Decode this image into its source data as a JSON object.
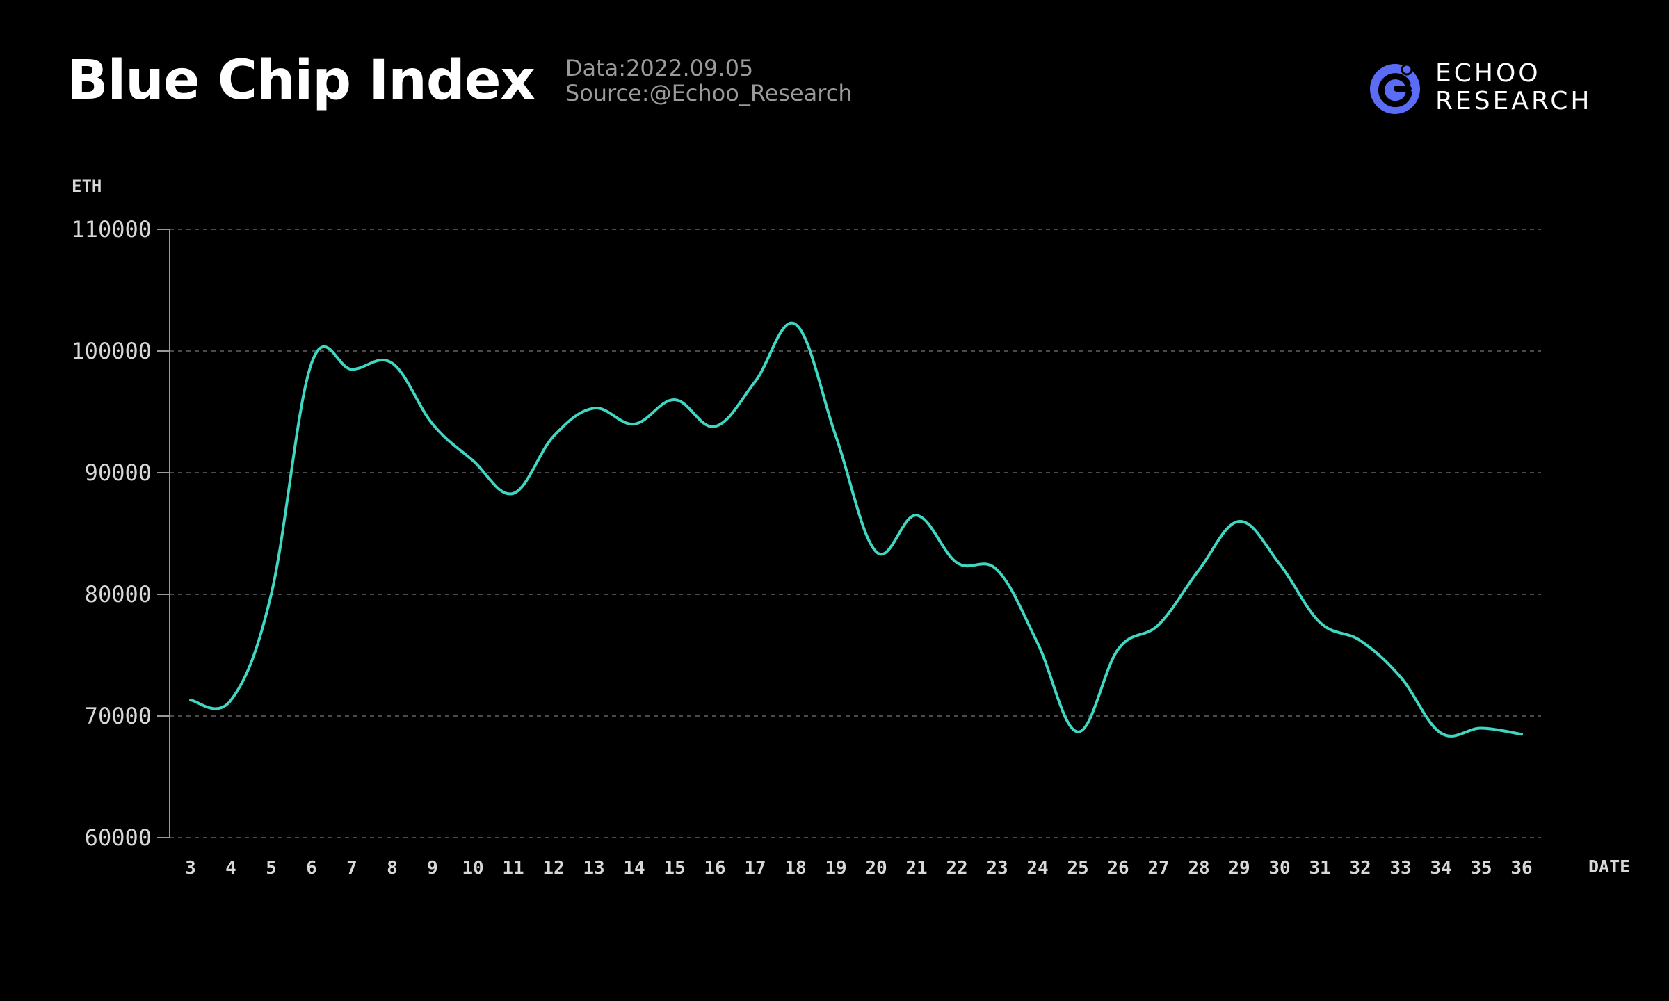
{
  "header": {
    "title": "Blue Chip Index",
    "date_line": "Data:2022.09.05",
    "source_line": "Source:@Echoo_Research"
  },
  "logo": {
    "line1": "ECHOO",
    "line2": "RESEARCH",
    "icon": "echoo-logo-icon",
    "color": "#5b6cf6"
  },
  "colors": {
    "background": "#000000",
    "line": "#3fd6c2",
    "grid": "#4a4a4a",
    "axis": "#9a9a9a",
    "tick_text": "#d8d8d8"
  },
  "chart_data": {
    "type": "line",
    "title": "Blue Chip Index",
    "ylabel": "ETH",
    "xlabel": "DATE",
    "ylim": [
      60000,
      110000
    ],
    "yticks": [
      60000,
      70000,
      80000,
      90000,
      100000,
      110000
    ],
    "grid": true,
    "categories": [
      "3",
      "4",
      "5",
      "6",
      "7",
      "8",
      "9",
      "10",
      "11",
      "12",
      "13",
      "14",
      "15",
      "16",
      "17",
      "18",
      "19",
      "20",
      "21",
      "22",
      "23",
      "24",
      "25",
      "26",
      "27",
      "28",
      "29",
      "30",
      "31",
      "32",
      "33",
      "34",
      "35",
      "36"
    ],
    "series": [
      {
        "values": [
          71300,
          71300,
          80000,
          99000,
          98500,
          99000,
          94000,
          91000,
          88300,
          93000,
          95300,
          94000,
          96000,
          93800,
          97500,
          102200,
          93000,
          83500,
          86500,
          82600,
          82000,
          76000,
          68700,
          75500,
          77500,
          82000,
          86000,
          82500,
          77700,
          76200,
          73200,
          68600,
          69000,
          68500
        ]
      }
    ]
  }
}
